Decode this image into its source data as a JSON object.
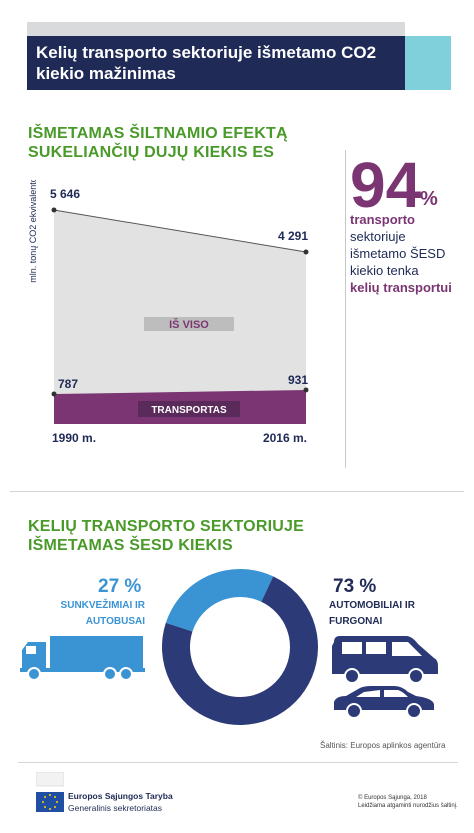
{
  "header": {
    "title": "Kelių transporto sektoriuje išmetamo CO2 kiekio mažinimas"
  },
  "section1": {
    "title": "IŠMETAMAS ŠILTNAMIO EFEKTĄ SUKELIANČIŲ DUJŲ KIEKIS ES"
  },
  "chart_data": {
    "type": "area",
    "categories": [
      "1990 m.",
      "2016 m."
    ],
    "series": [
      {
        "name": "IŠ VISO",
        "values": [
          5646,
          4291
        ],
        "value_labels": [
          "5 646",
          "4 291"
        ],
        "color": "#e2e2e2"
      },
      {
        "name": "TRANSPORTAS",
        "values": [
          787,
          931
        ],
        "value_labels": [
          "787",
          "931"
        ],
        "color": "#7b3573"
      }
    ],
    "ylabel": "mln. tonų CO2 ekvivalento"
  },
  "fact": {
    "number": "94",
    "percent_sign": "%",
    "line1": "transporto",
    "line2": "sektoriuje išmetamo ŠESD kiekio tenka",
    "line3": "kelių transportui"
  },
  "section2": {
    "title": "KELIŲ TRANSPORTO SEKTORIUJE IŠMETAMAS ŠESD KIEKIS",
    "left_pct": "27 %",
    "left_label": "SUNKVEŽIMIAI IR AUTOBUSAI",
    "right_pct": "73 %",
    "right_label": "AUTOMOBILIAI IR FURGONAI",
    "donut": [
      {
        "name": "SUNKVEŽIMIAI IR AUTOBUSAI",
        "value": 27,
        "color": "#3a94d4"
      },
      {
        "name": "AUTOMOBILIAI IR FURGONAI",
        "value": 73,
        "color": "#2c3a78"
      }
    ],
    "source": "Šaltinis: Europos aplinkos agentūra"
  },
  "footer": {
    "org": "Europos Sąjungos Taryba",
    "secretariat": "Generalinis sekretoriatas",
    "copyright1": "© Europos Sąjunga, 2018",
    "copyright2": "Leidžiama atgaminti nurodžius šaltinį."
  },
  "icons": [
    "truck-icon",
    "van-icon",
    "car-icon",
    "eu-flag-icon"
  ]
}
